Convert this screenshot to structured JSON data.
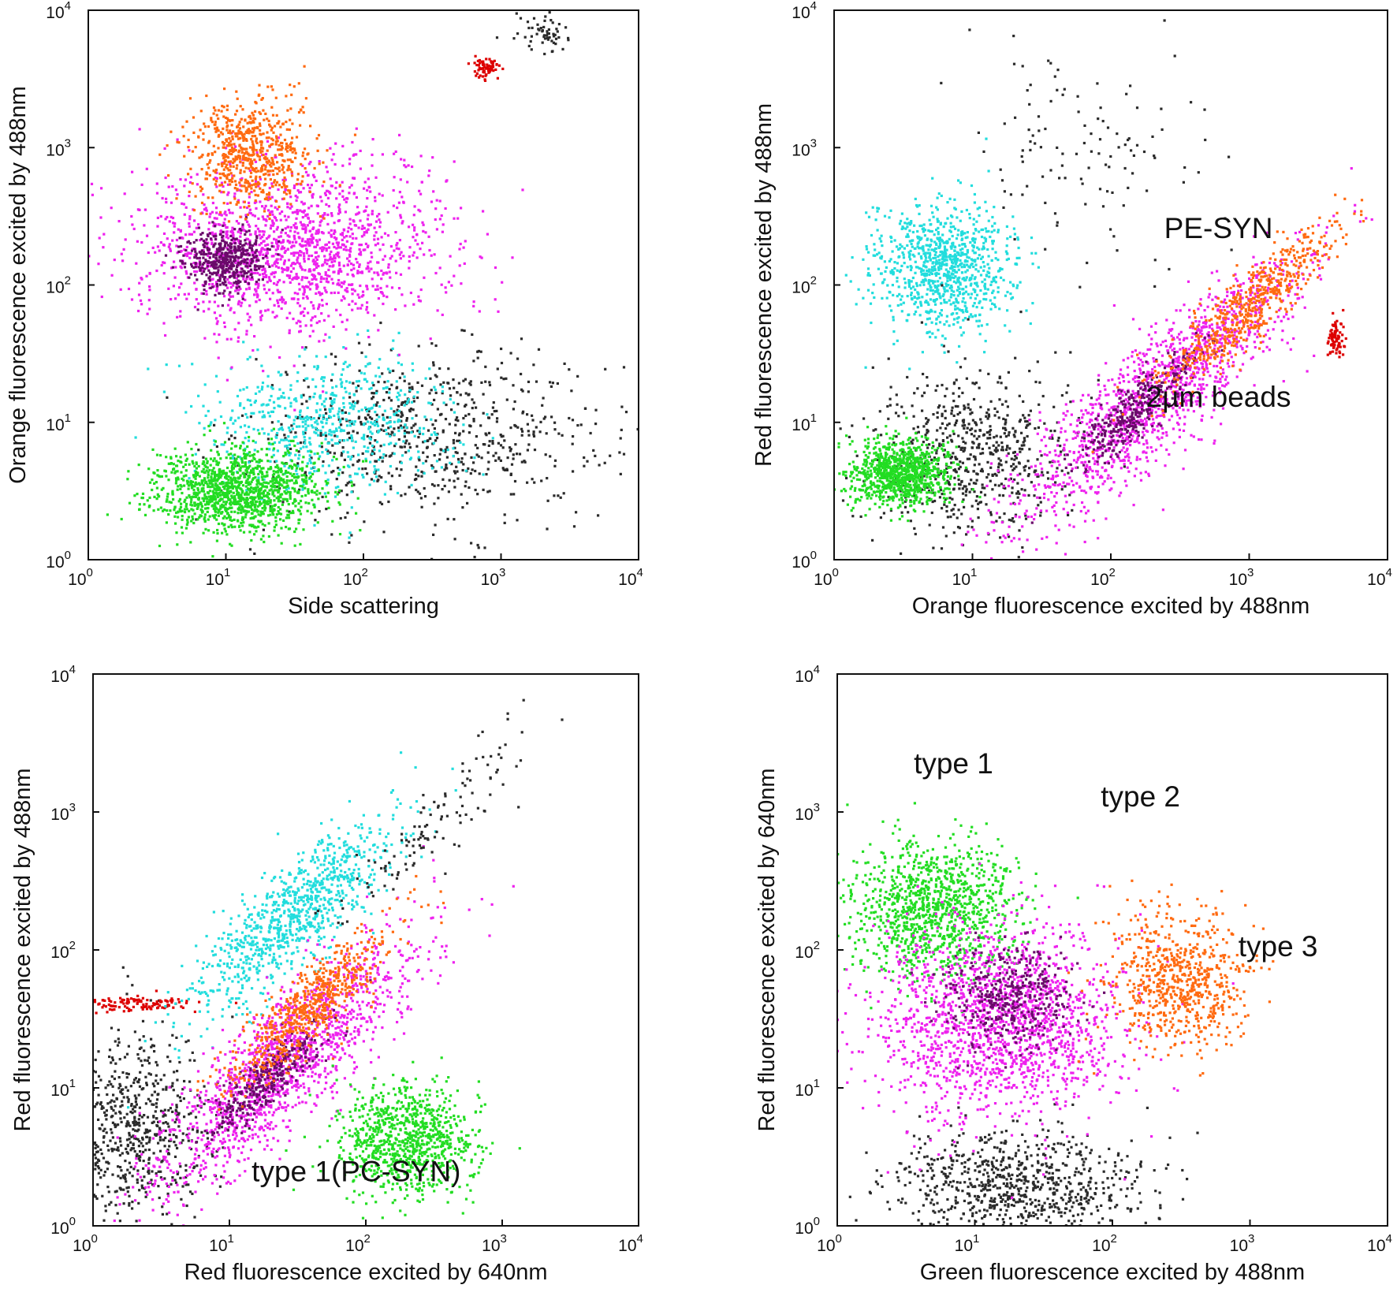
{
  "figure_title": "",
  "chart_data": [
    {
      "type": "scatter",
      "panel": "top-left",
      "xlabel": "Side scattering",
      "ylabel": "Orange fluorescence excited by 488nm",
      "xscale": "log",
      "yscale": "log",
      "xlim": [
        1,
        10000
      ],
      "ylim": [
        1,
        10000
      ],
      "x_ticks": [
        {
          "value": 1,
          "base": "10",
          "exp": "0"
        },
        {
          "value": 10,
          "base": "10",
          "exp": "1"
        },
        {
          "value": 100,
          "base": "10",
          "exp": "2"
        },
        {
          "value": 1000,
          "base": "10",
          "exp": "3"
        },
        {
          "value": 10000,
          "base": "10",
          "exp": "4"
        }
      ],
      "y_ticks": [
        {
          "value": 1,
          "base": "10",
          "exp": "0"
        },
        {
          "value": 10,
          "base": "10",
          "exp": "1"
        },
        {
          "value": 100,
          "base": "10",
          "exp": "2"
        },
        {
          "value": 1000,
          "base": "10",
          "exp": "3"
        },
        {
          "value": 10000,
          "base": "10",
          "exp": "4"
        }
      ],
      "annotations": [],
      "clusters": [
        {
          "name": "background",
          "color": "#2b2b2b",
          "center": [
            300,
            8
          ],
          "spread": [
            0.65,
            0.3
          ],
          "n": 700
        },
        {
          "name": "cyan-population",
          "color": "#22dddd",
          "center": [
            60,
            10
          ],
          "spread": [
            0.45,
            0.25
          ],
          "n": 650
        },
        {
          "name": "green-population",
          "color": "#22dd22",
          "center": [
            12,
            3.2
          ],
          "spread": [
            0.3,
            0.15
          ],
          "n": 1300
        },
        {
          "name": "magenta-population",
          "color": "#ee22ee",
          "center": [
            30,
            180
          ],
          "spread": [
            0.55,
            0.3
          ],
          "n": 1600
        },
        {
          "name": "magenta-dense",
          "color": "#6a0a6a",
          "center": [
            10,
            150
          ],
          "spread": [
            0.14,
            0.11
          ],
          "n": 450
        },
        {
          "name": "orange-population",
          "color": "#ff6a10",
          "center": [
            15,
            900
          ],
          "spread": [
            0.22,
            0.2
          ],
          "n": 650
        },
        {
          "name": "beads",
          "color": "#dd0000",
          "center": [
            800,
            3800
          ],
          "spread": [
            0.05,
            0.04
          ],
          "n": 70
        },
        {
          "name": "upper-diagonal",
          "color": "#2b2b2b",
          "center": [
            2000,
            7000
          ],
          "spread": [
            0.12,
            0.07
          ],
          "n": 60
        }
      ]
    },
    {
      "type": "scatter",
      "panel": "top-right",
      "xlabel": "Orange fluorescence excited by 488nm",
      "ylabel": "Red fluorescence excited by 488nm",
      "xscale": "log",
      "yscale": "log",
      "xlim": [
        1,
        10000
      ],
      "ylim": [
        1,
        10000
      ],
      "x_ticks": [
        {
          "value": 1,
          "base": "10",
          "exp": "0"
        },
        {
          "value": 10,
          "base": "10",
          "exp": "1"
        },
        {
          "value": 100,
          "base": "10",
          "exp": "2"
        },
        {
          "value": 1000,
          "base": "10",
          "exp": "3"
        },
        {
          "value": 10000,
          "base": "10",
          "exp": "4"
        }
      ],
      "y_ticks": [
        {
          "value": 1,
          "base": "10",
          "exp": "0"
        },
        {
          "value": 10,
          "base": "10",
          "exp": "1"
        },
        {
          "value": 100,
          "base": "10",
          "exp": "2"
        },
        {
          "value": 1000,
          "base": "10",
          "exp": "3"
        },
        {
          "value": 10000,
          "base": "10",
          "exp": "4"
        }
      ],
      "annotations": [
        {
          "text": "PE-SYN",
          "x": 600,
          "y": 220
        },
        {
          "text": "2µm beads",
          "x": 600,
          "y": 13
        }
      ],
      "clusters": [
        {
          "name": "background",
          "color": "#2b2b2b",
          "center": [
            10,
            6
          ],
          "spread": [
            0.35,
            0.3
          ],
          "n": 650
        },
        {
          "name": "green-population",
          "color": "#22dd22",
          "center": [
            3,
            4.2
          ],
          "spread": [
            0.18,
            0.12
          ],
          "n": 900
        },
        {
          "name": "cyan-population",
          "color": "#22dddd",
          "center": [
            6,
            140
          ],
          "spread": [
            0.25,
            0.22
          ],
          "n": 950
        },
        {
          "name": "magenta-population",
          "color": "#ee22ee",
          "center": [
            200,
            15
          ],
          "spread": [
            0.5,
            0.35
          ],
          "n": 1400,
          "diagonal": true
        },
        {
          "name": "magenta-dense",
          "color": "#6a0a6a",
          "center": [
            150,
            12
          ],
          "spread": [
            0.22,
            0.15
          ],
          "n": 350,
          "diagonal": true
        },
        {
          "name": "orange-population",
          "color": "#ff6a10",
          "center": [
            1000,
            70
          ],
          "spread": [
            0.3,
            0.2
          ],
          "n": 600,
          "diagonal": true
        },
        {
          "name": "beads",
          "color": "#dd0000",
          "center": [
            4200,
            40
          ],
          "spread": [
            0.03,
            0.08
          ],
          "n": 80
        },
        {
          "name": "upper-black",
          "color": "#2b2b2b",
          "center": [
            60,
            800
          ],
          "spread": [
            0.45,
            0.45
          ],
          "n": 120
        }
      ]
    },
    {
      "type": "scatter",
      "panel": "bottom-left",
      "xlabel": "Red fluorescence excited by 640nm",
      "ylabel": "Red fluorescence excited by 488nm",
      "xscale": "log",
      "yscale": "log",
      "xlim": [
        1,
        10000
      ],
      "ylim": [
        1,
        10000
      ],
      "x_ticks": [
        {
          "value": 1,
          "base": "10",
          "exp": "0"
        },
        {
          "value": 10,
          "base": "10",
          "exp": "1"
        },
        {
          "value": 100,
          "base": "10",
          "exp": "2"
        },
        {
          "value": 1000,
          "base": "10",
          "exp": "3"
        },
        {
          "value": 10000,
          "base": "10",
          "exp": "4"
        }
      ],
      "y_ticks": [
        {
          "value": 1,
          "base": "10",
          "exp": "0"
        },
        {
          "value": 10,
          "base": "10",
          "exp": "1"
        },
        {
          "value": 100,
          "base": "10",
          "exp": "2"
        },
        {
          "value": 1000,
          "base": "10",
          "exp": "3"
        },
        {
          "value": 10000,
          "base": "10",
          "exp": "4"
        }
      ],
      "annotations": [
        {
          "text": "type 1(PC-SYN)",
          "x": 85,
          "y": 2.1
        }
      ],
      "clusters": [
        {
          "name": "background",
          "color": "#2b2b2b",
          "center": [
            2,
            5
          ],
          "spread": [
            0.3,
            0.35
          ],
          "n": 700
        },
        {
          "name": "red-line",
          "color": "#dd0000",
          "center": [
            2,
            40
          ],
          "spread": [
            0.25,
            0.03
          ],
          "n": 120
        },
        {
          "name": "cyan-population",
          "color": "#22dddd",
          "center": [
            30,
            180
          ],
          "spread": [
            0.35,
            0.3
          ],
          "n": 900,
          "diagonal": true
        },
        {
          "name": "magenta-population",
          "color": "#ee22ee",
          "center": [
            25,
            15
          ],
          "spread": [
            0.45,
            0.35
          ],
          "n": 1500,
          "diagonal": true
        },
        {
          "name": "magenta-dense",
          "color": "#6a0a6a",
          "center": [
            20,
            12
          ],
          "spread": [
            0.2,
            0.15
          ],
          "n": 350,
          "diagonal": true
        },
        {
          "name": "orange-population",
          "color": "#ff6a10",
          "center": [
            40,
            40
          ],
          "spread": [
            0.3,
            0.22
          ],
          "n": 650,
          "diagonal": true
        },
        {
          "name": "green-population",
          "color": "#22dd22",
          "center": [
            200,
            4.2
          ],
          "spread": [
            0.25,
            0.2
          ],
          "n": 900
        },
        {
          "name": "upper-black",
          "color": "#2b2b2b",
          "center": [
            400,
            1000
          ],
          "spread": [
            0.35,
            0.25
          ],
          "n": 120,
          "diagonal": true
        }
      ]
    },
    {
      "type": "scatter",
      "panel": "bottom-right",
      "xlabel": "Green fluorescence excited by 488nm",
      "ylabel": "Red fluorescence excited by 640nm",
      "xscale": "log",
      "yscale": "log",
      "xlim": [
        1,
        10000
      ],
      "ylim": [
        1,
        10000
      ],
      "x_ticks": [
        {
          "value": 1,
          "base": "10",
          "exp": "0"
        },
        {
          "value": 10,
          "base": "10",
          "exp": "1"
        },
        {
          "value": 100,
          "base": "10",
          "exp": "2"
        },
        {
          "value": 1000,
          "base": "10",
          "exp": "3"
        },
        {
          "value": 10000,
          "base": "10",
          "exp": "4"
        }
      ],
      "y_ticks": [
        {
          "value": 1,
          "base": "10",
          "exp": "0"
        },
        {
          "value": 10,
          "base": "10",
          "exp": "1"
        },
        {
          "value": 100,
          "base": "10",
          "exp": "2"
        },
        {
          "value": 1000,
          "base": "10",
          "exp": "3"
        },
        {
          "value": 10000,
          "base": "10",
          "exp": "4"
        }
      ],
      "annotations": [
        {
          "text": "type 1",
          "x": 7,
          "y": 1900
        },
        {
          "text": "type 2",
          "x": 160,
          "y": 1100
        },
        {
          "text": "type 3",
          "x": 1600,
          "y": 90
        }
      ],
      "clusters": [
        {
          "name": "background",
          "color": "#2b2b2b",
          "center": [
            20,
            2
          ],
          "spread": [
            0.45,
            0.2
          ],
          "n": 800
        },
        {
          "name": "green-population",
          "color": "#22dd22",
          "center": [
            5,
            200
          ],
          "spread": [
            0.3,
            0.25
          ],
          "n": 1100
        },
        {
          "name": "magenta-population",
          "color": "#ee22ee",
          "center": [
            15,
            30
          ],
          "spread": [
            0.45,
            0.35
          ],
          "n": 1700
        },
        {
          "name": "magenta-dense",
          "color": "#6a0a6a",
          "center": [
            18,
            45
          ],
          "spread": [
            0.22,
            0.18
          ],
          "n": 400
        },
        {
          "name": "orange-population",
          "color": "#ff6a10",
          "center": [
            300,
            60
          ],
          "spread": [
            0.25,
            0.25
          ],
          "n": 700
        }
      ]
    }
  ]
}
